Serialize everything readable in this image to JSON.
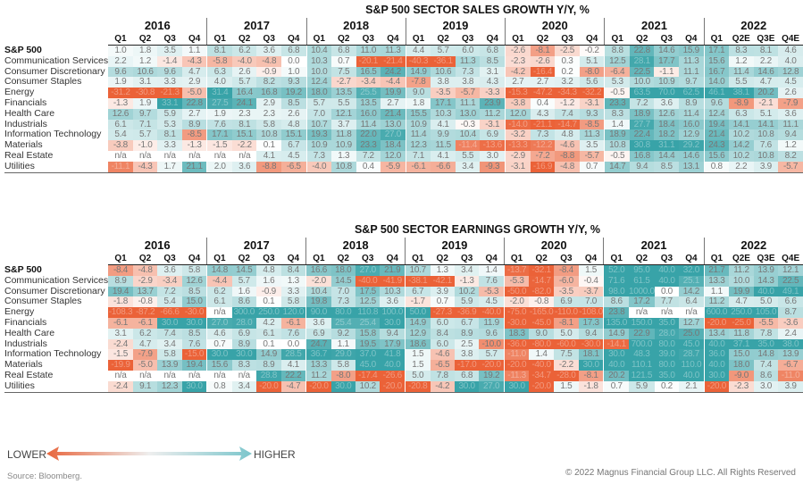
{
  "chart_data": [
    {
      "type": "heatmap",
      "title": "S&P 500 SECTOR SALES GROWTH Y/Y, %",
      "years": [
        "2016",
        "2017",
        "2018",
        "2019",
        "2020",
        "2021",
        "2022"
      ],
      "quarters": [
        "Q1",
        "Q2",
        "Q3",
        "Q4",
        "Q1",
        "Q2",
        "Q3",
        "Q4",
        "Q1",
        "Q2",
        "Q3",
        "Q4",
        "Q1",
        "Q2",
        "Q3",
        "Q4",
        "Q1",
        "Q2",
        "Q3",
        "Q4",
        "Q1",
        "Q2",
        "Q3",
        "Q4",
        "Q1",
        "Q2E",
        "Q3E",
        "Q4E"
      ],
      "rows": [
        {
          "label": "S&P 500",
          "bold": true,
          "values": [
            "1.0",
            "1.8",
            "3.5",
            "1.1",
            "8.1",
            "6.2",
            "3.6",
            "6.8",
            "10.4",
            "6.8",
            "11.0",
            "11.3",
            "4.4",
            "5.7",
            "6.0",
            "6.8",
            "-2.6",
            "-8.1",
            "-2.5",
            "-0.2",
            "8.8",
            "22.8",
            "14.6",
            "15.9",
            "17.1",
            "8.3",
            "8.1",
            "4.6"
          ]
        },
        {
          "label": "Communication Services",
          "values": [
            "2.2",
            "1.2",
            "-1.4",
            "-4.3",
            "-5.8",
            "-4.0",
            "-4.8",
            "0.0",
            "10.3",
            "0.7",
            "-20.1",
            "-21.4",
            "-40.3",
            "-36.1",
            "11.3",
            "8.5",
            "-2.3",
            "-2.6",
            "0.3",
            "5.1",
            "12.5",
            "28.1",
            "17.7",
            "11.3",
            "15.6",
            "1.2",
            "2.2",
            "4.0"
          ]
        },
        {
          "label": "Consumer Discretionary",
          "values": [
            "9.6",
            "10.6",
            "9.6",
            "4.7",
            "6.3",
            "2.6",
            "-0.9",
            "1.0",
            "10.0",
            "7.5",
            "16.5",
            "24.2",
            "14.9",
            "10.6",
            "7.3",
            "3.1",
            "-4.2",
            "-16.4",
            "0.2",
            "-8.0",
            "-6.4",
            "22.5",
            "-1.1",
            "11.1",
            "16.7",
            "11.4",
            "14.6",
            "12.8"
          ]
        },
        {
          "label": "Consumer Staples",
          "values": [
            "1.9",
            "3.1",
            "3.3",
            "2.9",
            "4.0",
            "5.7",
            "8.2",
            "9.3",
            "12.4",
            "-2.7",
            "-3.4",
            "-4.4",
            "-7.8",
            "3.8",
            "3.8",
            "4.3",
            "2.7",
            "2.7",
            "3.2",
            "5.6",
            "5.3",
            "10.0",
            "10.9",
            "9.7",
            "14.0",
            "5.5",
            "4.7",
            "4.5"
          ]
        },
        {
          "label": "Energy",
          "values": [
            "-31.2",
            "-30.8",
            "-21.3",
            "-5.0",
            "31.4",
            "16.4",
            "16.8",
            "19.2",
            "18.0",
            "13.5",
            "25.5",
            "19.9",
            "9.0",
            "-3.5",
            "-5.7",
            "-3.3",
            "-15.3",
            "-47.2",
            "-34.3",
            "-32.2",
            "-0.5",
            "63.5",
            "70.0",
            "62.5",
            "46.1",
            "38.1",
            "20.2",
            "2.6"
          ]
        },
        {
          "label": "Financials",
          "values": [
            "-1.3",
            "1.9",
            "33.1",
            "22.8",
            "27.5",
            "24.1",
            "2.9",
            "8.5",
            "5.7",
            "5.5",
            "13.5",
            "2.7",
            "1.8",
            "17.1",
            "11.1",
            "23.9",
            "-3.8",
            "0.4",
            "-1.2",
            "-3.1",
            "23.3",
            "7.2",
            "3.6",
            "8.9",
            "9.6",
            "-8.9",
            "-2.1",
            "-7.9"
          ]
        },
        {
          "label": "Health Care",
          "values": [
            "12.6",
            "9.7",
            "5.9",
            "2.7",
            "1.9",
            "2.3",
            "2.3",
            "2.6",
            "7.0",
            "12.1",
            "16.0",
            "21.4",
            "15.5",
            "10.3",
            "13.0",
            "11.2",
            "12.0",
            "4.3",
            "7.4",
            "9.3",
            "8.3",
            "18.9",
            "12.6",
            "11.4",
            "12.4",
            "6.3",
            "5.1",
            "3.6"
          ]
        },
        {
          "label": "Industrials",
          "values": [
            "6.1",
            "7.1",
            "5.3",
            "8.9",
            "7.6",
            "8.1",
            "5.8",
            "4.8",
            "10.7",
            "3.7",
            "11.4",
            "13.0",
            "10.9",
            "4.1",
            "-0.3",
            "-3.1",
            "-14.0",
            "-21.1",
            "-14.7",
            "-8.5",
            "1.4",
            "27.7",
            "18.4",
            "16.0",
            "19.4",
            "14.1",
            "14.1",
            "11.1"
          ]
        },
        {
          "label": "Information Technology",
          "values": [
            "5.4",
            "5.7",
            "8.1",
            "-8.5",
            "17.1",
            "15.1",
            "10.8",
            "15.1",
            "19.3",
            "11.8",
            "22.0",
            "27.0",
            "11.4",
            "9.9",
            "10.4",
            "6.9",
            "-3.2",
            "7.3",
            "4.8",
            "11.3",
            "18.9",
            "22.4",
            "18.2",
            "12.9",
            "21.4",
            "10.2",
            "10.8",
            "9.4"
          ]
        },
        {
          "label": "Materials",
          "values": [
            "-3.8",
            "-1.0",
            "3.3",
            "-1.3",
            "-1.5",
            "-2.2",
            "0.1",
            "6.7",
            "10.9",
            "10.9",
            "23.3",
            "18.4",
            "12.3",
            "11.5",
            "-11.4",
            "-13.6",
            "-13.3",
            "-12.2",
            "-4.6",
            "3.5",
            "10.8",
            "30.8",
            "31.1",
            "29.2",
            "24.3",
            "14.2",
            "7.6",
            "1.2"
          ]
        },
        {
          "label": "Real Estate",
          "values": [
            "n/a",
            "n/a",
            "n/a",
            "n/a",
            "n/a",
            "n/a",
            "4.1",
            "4.5",
            "7.3",
            "1.3",
            "7.2",
            "12.0",
            "7.1",
            "4.1",
            "5.5",
            "3.0",
            "-2.9",
            "-7.2",
            "-8.8",
            "-5.7",
            "-0.5",
            "16.8",
            "14.4",
            "14.6",
            "15.6",
            "10.2",
            "10.8",
            "8.2"
          ]
        },
        {
          "label": "Utilities",
          "values": [
            "-11.1",
            "-4.3",
            "1.7",
            "21.1",
            "2.0",
            "3.6",
            "-8.8",
            "-6.5",
            "-4.0",
            "10.8",
            "0.4",
            "-5.9",
            "-6.1",
            "-6.6",
            "3.4",
            "-9.3",
            "-3.1",
            "-16.9",
            "-4.8",
            "0.7",
            "14.7",
            "9.4",
            "8.5",
            "13.1",
            "0.8",
            "2.2",
            "3.9",
            "-5.7"
          ]
        }
      ]
    },
    {
      "type": "heatmap",
      "title": "S&P 500 SECTOR EARNINGS GROWTH Y/Y, %",
      "years": [
        "2016",
        "2017",
        "2018",
        "2019",
        "2020",
        "2021",
        "2022"
      ],
      "quarters": [
        "Q1",
        "Q2",
        "Q3",
        "Q4",
        "Q1",
        "Q2",
        "Q3",
        "Q4",
        "Q1",
        "Q2",
        "Q3",
        "Q4",
        "Q1",
        "Q2",
        "Q3",
        "Q4",
        "Q1",
        "Q2",
        "Q3",
        "Q4",
        "Q1",
        "Q2",
        "Q3",
        "Q4",
        "Q1",
        "Q2E",
        "Q3E",
        "Q4E"
      ],
      "rows": [
        {
          "label": "S&P 500",
          "bold": true,
          "values": [
            "-8.4",
            "-4.8",
            "3.6",
            "5.8",
            "14.8",
            "14.5",
            "4.8",
            "8.4",
            "16.6",
            "18.0",
            "27.0",
            "21.9",
            "10.7",
            "1.3",
            "3.4",
            "1.4",
            "-13.7",
            "-32.1",
            "-8.4",
            "1.5",
            "52.0",
            "95.0",
            "40.0",
            "32.0",
            "21.7",
            "11.2",
            "13.9",
            "12.1"
          ]
        },
        {
          "label": "Communication Services",
          "values": [
            "8.9",
            "-2.9",
            "-3.4",
            "12.6",
            "-4.4",
            "5.7",
            "1.6",
            "1.3",
            "-2.0",
            "14.5",
            "-40.0",
            "-41.9",
            "-38.1",
            "-42.1",
            "-1.3",
            "7.6",
            "-5.3",
            "-14.7",
            "-6.0",
            "-0.4",
            "71.6",
            "61.5",
            "40.0",
            "25.1",
            "13.3",
            "10.0",
            "14.3",
            "22.5"
          ]
        },
        {
          "label": "Consumer Discretionary",
          "values": [
            "19.4",
            "13.7",
            "7.2",
            "8.5",
            "6.2",
            "1.6",
            "-0.9",
            "3.3",
            "10.4",
            "7.0",
            "17.5",
            "10.3",
            "6.7",
            "3.9",
            "10.2",
            "-5.3",
            "-50.0",
            "-82.0",
            "-3.5",
            "-3.7",
            "98.0",
            "1000.0",
            "0.0",
            "14.2",
            "1.1",
            "19.9",
            "40.0",
            "49.1"
          ]
        },
        {
          "label": "Consumer Staples",
          "values": [
            "-1.8",
            "-0.8",
            "5.4",
            "15.0",
            "6.1",
            "8.6",
            "0.1",
            "5.8",
            "19.8",
            "7.3",
            "12.5",
            "3.6",
            "-1.7",
            "0.7",
            "5.9",
            "4.5",
            "-2.0",
            "-0.8",
            "6.9",
            "7.0",
            "8.6",
            "17.2",
            "7.7",
            "6.4",
            "11.2",
            "4.7",
            "5.0",
            "6.6"
          ]
        },
        {
          "label": "Energy",
          "values": [
            "-108.3",
            "-87.2",
            "-66.6",
            "-30.0",
            "n/a",
            "300.0",
            "250.0",
            "120.0",
            "90.0",
            "80.0",
            "110.8",
            "100.0",
            "50.0",
            "-27.3",
            "-36.9",
            "-40.0",
            "-75.0",
            "-165.0",
            "-110.0",
            "-108.0",
            "23.8",
            "n/a",
            "n/a",
            "n/a",
            "600.0",
            "250.0",
            "105.0",
            "8.7"
          ]
        },
        {
          "label": "Financials",
          "values": [
            "-6.1",
            "-6.1",
            "30.0",
            "30.0",
            "27.0",
            "28.0",
            "4.2",
            "-6.1",
            "3.6",
            "25.4",
            "25.4",
            "30.0",
            "14.9",
            "6.0",
            "6.7",
            "11.9",
            "-30.0",
            "-45.0",
            "-8.1",
            "17.3",
            "135.0",
            "150.0",
            "35.0",
            "12.7",
            "-20.0",
            "-25.0",
            "-5.5",
            "-3.6"
          ]
        },
        {
          "label": "Health Care",
          "values": [
            "3.1",
            "6.2",
            "7.4",
            "8.5",
            "4.6",
            "6.9",
            "6.1",
            "7.6",
            "6.9",
            "9.2",
            "15.8",
            "9.4",
            "12.9",
            "8.4",
            "8.9",
            "9.6",
            "18.3",
            "9.0",
            "5.0",
            "9.4",
            "14.9",
            "22.9",
            "28.0",
            "25.0",
            "13.4",
            "11.8",
            "7.8",
            "2.4"
          ]
        },
        {
          "label": "Industrials",
          "values": [
            "-2.4",
            "4.7",
            "3.4",
            "7.6",
            "0.7",
            "8.9",
            "0.1",
            "0.0",
            "24.7",
            "1.1",
            "19.5",
            "17.9",
            "18.6",
            "6.0",
            "2.5",
            "-10.0",
            "-36.0",
            "-80.0",
            "-60.0",
            "-30.0",
            "-14.1",
            "700.0",
            "80.0",
            "45.0",
            "40.0",
            "37.1",
            "35.0",
            "38.0"
          ]
        },
        {
          "label": "Information Technology",
          "values": [
            "-1.5",
            "-7.9",
            "5.8",
            "-15.0",
            "30.0",
            "30.0",
            "14.9",
            "28.5",
            "36.7",
            "29.0",
            "37.0",
            "41.8",
            "1.5",
            "-4.6",
            "3.8",
            "5.7",
            "-11.0",
            "1.4",
            "7.5",
            "18.1",
            "30.0",
            "48.3",
            "39.0",
            "28.7",
            "36.0",
            "15.0",
            "14.8",
            "13.9"
          ]
        },
        {
          "label": "Materials",
          "values": [
            "-19.9",
            "-5.0",
            "13.9",
            "19.4",
            "15.6",
            "8.3",
            "8.9",
            "4.1",
            "13.3",
            "5.8",
            "45.0",
            "40.0",
            "1.5",
            "-6.5",
            "-17.0",
            "-20.0",
            "-20.0",
            "-40.0",
            "-2.2",
            "30.0",
            "40.0",
            "110.1",
            "80.0",
            "110.0",
            "40.0",
            "18.0",
            "7.4",
            "-6.7"
          ]
        },
        {
          "label": "Real Estate",
          "values": [
            "n/a",
            "n/a",
            "n/a",
            "n/a",
            "n/a",
            "n/a",
            "28.8",
            "22.2",
            "11.2",
            "-8.0",
            "-17.4",
            "-26.6",
            "5.0",
            "7.8",
            "6.8",
            "19.2",
            "-11.3",
            "-34.7",
            "-28.0",
            "-8.1",
            "20.2",
            "121.5",
            "35.0",
            "40.0",
            "30.0",
            "-9.0",
            "8.6",
            "-11.0"
          ]
        },
        {
          "label": "Utilities",
          "values": [
            "-2.4",
            "9.1",
            "12.3",
            "30.0",
            "0.8",
            "3.4",
            "-20.0",
            "-4.7",
            "-20.0",
            "30.0",
            "10.2",
            "-20.0",
            "-20.8",
            "-4.2",
            "30.0",
            "27.0",
            "30.0",
            "-20.0",
            "1.5",
            "-1.8",
            "0.7",
            "5.9",
            "0.2",
            "2.1",
            "-20.0",
            "-2.3",
            "3.0",
            "3.9"
          ]
        }
      ]
    }
  ],
  "legend": {
    "low_label": "LOWER",
    "high_label": "HIGHER",
    "low_color": "#e8663d",
    "high_color": "#7cc6cc"
  },
  "colors": {
    "negative": "#ea5a2e",
    "positive": "#2e9ea3",
    "neutral": "#ffffff"
  },
  "footer": {
    "source": "Source: Bloomberg.",
    "copyright": "© 2022 Magnus Financial Group LLC. All Rights Reserved"
  }
}
